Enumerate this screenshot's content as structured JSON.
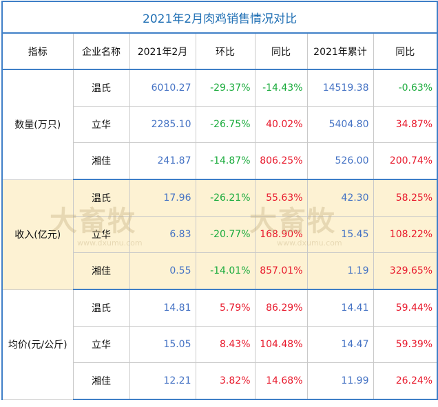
{
  "table": {
    "title": "2021年2月肉鸡销售情况对比",
    "headers": [
      "指标",
      "企业名称",
      "2021年2月",
      "环比",
      "同比",
      "2021年累计",
      "同比"
    ],
    "groups": [
      {
        "label": "数量(万只)",
        "rows": [
          [
            "温氏",
            "6010.27",
            "-29.37%",
            "-14.43%",
            "14519.38",
            "-0.63%"
          ],
          [
            "立华",
            "2285.10",
            "-26.75%",
            "40.02%",
            "5404.80",
            "34.87%"
          ],
          [
            "湘佳",
            "241.87",
            "-14.87%",
            "806.25%",
            "526.00",
            "200.74%"
          ]
        ]
      },
      {
        "label": "收入(亿元)",
        "rows": [
          [
            "温氏",
            "17.96",
            "-26.21%",
            "55.63%",
            "42.30",
            "58.25%"
          ],
          [
            "立华",
            "6.83",
            "-20.77%",
            "168.90%",
            "15.45",
            "108.22%"
          ],
          [
            "湘佳",
            "0.55",
            "-14.01%",
            "857.01%",
            "1.19",
            "329.65%"
          ]
        ]
      },
      {
        "label": "均价(元/公斤)",
        "rows": [
          [
            "温氏",
            "14.81",
            "5.79%",
            "86.29%",
            "14.41",
            "59.44%"
          ],
          [
            "立华",
            "15.05",
            "8.43%",
            "104.48%",
            "14.47",
            "59.39%"
          ],
          [
            "湘佳",
            "12.21",
            "3.82%",
            "14.68%",
            "11.99",
            "26.24%"
          ]
        ]
      }
    ]
  },
  "watermark": {
    "text": "大畜牧",
    "url": "www.dxumu.com"
  }
}
